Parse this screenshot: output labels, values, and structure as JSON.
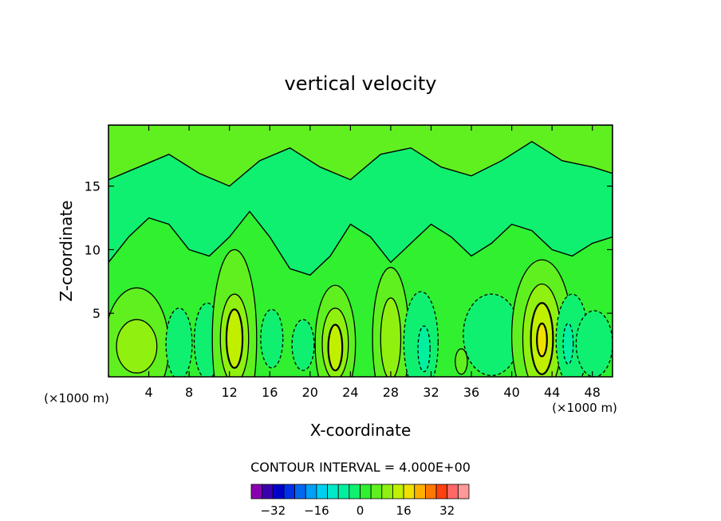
{
  "chart_data": {
    "type": "heatmap",
    "title": "vertical velocity",
    "xlabel": "X-coordinate",
    "ylabel": "Z-coordinate",
    "x_unit_label": "(×1000 m)",
    "x_ticks": [
      4,
      8,
      12,
      16,
      20,
      24,
      28,
      32,
      36,
      40,
      44,
      48
    ],
    "y_ticks": [
      5,
      10,
      15
    ],
    "xlim": [
      0,
      50
    ],
    "ylim": [
      0,
      19.8
    ],
    "contour_interval_label": "CONTOUR INTERVAL = 4.000E+00",
    "colorbar": {
      "ticks": [
        -32,
        -16,
        0,
        16,
        32
      ],
      "tick_labels": [
        "−32",
        "−16",
        "0",
        "16",
        "32"
      ],
      "levels": [
        -38,
        -34,
        -30,
        -26,
        -22,
        -18,
        -14,
        -10,
        -6,
        -2,
        2,
        6,
        10,
        14,
        18,
        22,
        26,
        30,
        34,
        38
      ],
      "colors": [
        "#8a00b0",
        "#3a00b0",
        "#0000c8",
        "#0030e8",
        "#0068f0",
        "#00a0f8",
        "#00d0f0",
        "#00e8c8",
        "#00f0a0",
        "#10f070",
        "#30f030",
        "#60f020",
        "#90f010",
        "#c0f000",
        "#f0e000",
        "#ffb000",
        "#ff7800",
        "#ff4010",
        "#ff6868",
        "#ff9898"
      ]
    },
    "background_level": 0,
    "cells": [
      {
        "x": 2.8,
        "z": 2.4,
        "rx": 3.2,
        "rz": 4.6,
        "level": 1
      },
      {
        "x": 2.8,
        "z": 2.4,
        "rx": 2.0,
        "rz": 2.1,
        "level": 2
      },
      {
        "x": 7.0,
        "z": 2.6,
        "rx": 1.3,
        "rz": 2.8,
        "level": -1
      },
      {
        "x": 9.8,
        "z": 2.8,
        "rx": 1.3,
        "rz": 3.0,
        "level": -1
      },
      {
        "x": 12.5,
        "z": 3.0,
        "rx": 2.2,
        "rz": 7.0,
        "level": 1
      },
      {
        "x": 12.5,
        "z": 3.0,
        "rx": 1.4,
        "rz": 3.5,
        "level": 2
      },
      {
        "x": 12.5,
        "z": 3.0,
        "rx": 0.8,
        "rz": 2.3,
        "level": 3
      },
      {
        "x": 16.2,
        "z": 3.0,
        "rx": 1.1,
        "rz": 2.3,
        "level": -1
      },
      {
        "x": 19.3,
        "z": 2.5,
        "rx": 1.1,
        "rz": 2.0,
        "level": -1
      },
      {
        "x": 22.5,
        "z": 2.6,
        "rx": 2.0,
        "rz": 4.6,
        "level": 1
      },
      {
        "x": 22.5,
        "z": 2.6,
        "rx": 1.3,
        "rz": 2.8,
        "level": 2
      },
      {
        "x": 22.5,
        "z": 2.3,
        "rx": 0.7,
        "rz": 1.8,
        "level": 3
      },
      {
        "x": 28.0,
        "z": 3.0,
        "rx": 1.8,
        "rz": 5.6,
        "level": 1
      },
      {
        "x": 28.0,
        "z": 3.0,
        "rx": 1.0,
        "rz": 3.2,
        "level": 2
      },
      {
        "x": 31.0,
        "z": 2.7,
        "rx": 1.7,
        "rz": 4.0,
        "level": -1
      },
      {
        "x": 31.3,
        "z": 2.2,
        "rx": 0.6,
        "rz": 1.8,
        "level": -2
      },
      {
        "x": 35.0,
        "z": 1.2,
        "rx": 0.6,
        "rz": 1.0,
        "level": 1
      },
      {
        "x": 38.0,
        "z": 3.3,
        "rx": 2.8,
        "rz": 3.2,
        "level": -1
      },
      {
        "x": 43.0,
        "z": 3.2,
        "rx": 3.0,
        "rz": 6.0,
        "level": 1
      },
      {
        "x": 43.0,
        "z": 3.0,
        "rx": 1.9,
        "rz": 4.3,
        "level": 2
      },
      {
        "x": 43.0,
        "z": 3.0,
        "rx": 1.1,
        "rz": 2.8,
        "level": 3
      },
      {
        "x": 43.0,
        "z": 2.9,
        "rx": 0.5,
        "rz": 1.3,
        "level": 4
      },
      {
        "x": 46.0,
        "z": 2.9,
        "rx": 1.6,
        "rz": 3.6,
        "level": -1
      },
      {
        "x": 45.6,
        "z": 2.6,
        "rx": 0.5,
        "rz": 1.6,
        "level": -2
      },
      {
        "x": 48.2,
        "z": 2.6,
        "rx": 1.8,
        "rz": 2.6,
        "level": -1
      }
    ],
    "upper_bands": [
      {
        "x": [
          0,
          2,
          4,
          6,
          8,
          10,
          12,
          14,
          16,
          18,
          20,
          22,
          24,
          26,
          28,
          30,
          32,
          34,
          36,
          38,
          40,
          42,
          44,
          46,
          48,
          50
        ],
        "z": [
          9,
          11,
          12.5,
          12,
          10,
          9.5,
          11,
          13,
          11,
          8.5,
          8,
          9.5,
          12,
          11,
          9,
          10.5,
          12,
          11,
          9.5,
          10.5,
          12,
          11.5,
          10,
          9.5,
          10.5,
          11
        ],
        "level": -1
      },
      {
        "x": [
          0,
          3,
          6,
          9,
          12,
          15,
          18,
          21,
          24,
          27,
          30,
          33,
          36,
          39,
          42,
          45,
          48,
          50
        ],
        "z": [
          15.5,
          16.5,
          17.5,
          16,
          15,
          17,
          18,
          16.5,
          15.5,
          17.5,
          18,
          16.5,
          15.8,
          17,
          18.5,
          17,
          16.5,
          16
        ],
        "level": 1
      }
    ]
  }
}
